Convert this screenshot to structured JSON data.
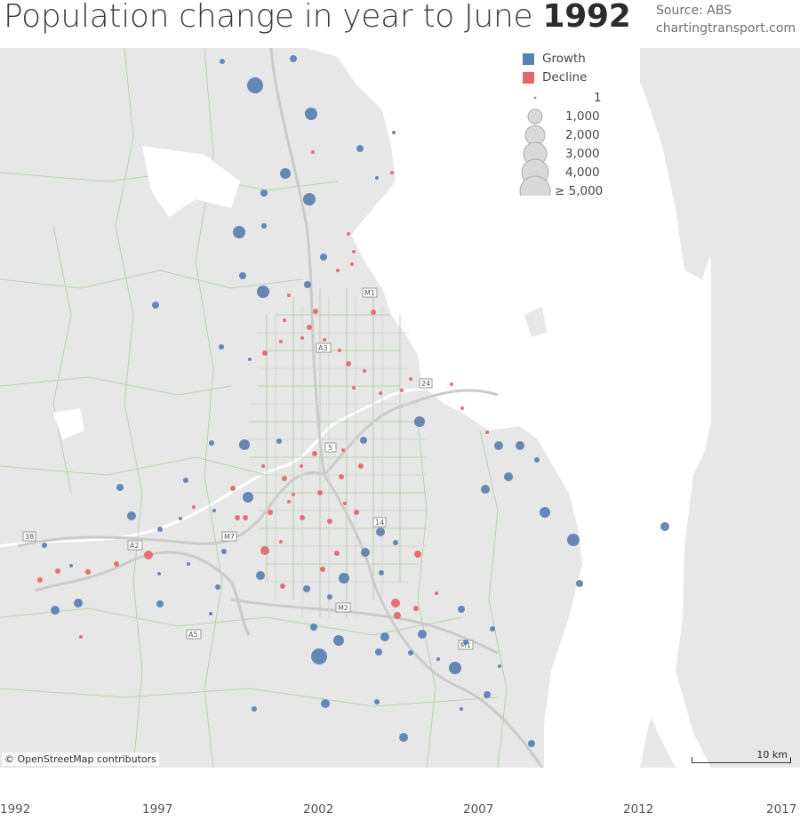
{
  "header": {
    "title_prefix": "Population change in year to June",
    "title_year": "1992",
    "source_line": "Source: ABS",
    "site_line": "chartingtransport.com"
  },
  "legend": {
    "categories": [
      {
        "label": "Growth",
        "color": "#5b7fb0"
      },
      {
        "label": "Decline",
        "color": "#e1676e"
      }
    ],
    "sizes": [
      "1",
      "1,000",
      "2,000",
      "3,000",
      "4,000",
      "≥ 5,000"
    ]
  },
  "map": {
    "attribution": "© OpenStreetMap contributors",
    "scale_label": "10 km",
    "road_labels": [
      "M1",
      "M1",
      "M2",
      "M7",
      "A2",
      "A3",
      "A5",
      "5",
      "14",
      "24",
      "38"
    ]
  },
  "timeline": {
    "years": [
      "1992",
      "1997",
      "2002",
      "2007",
      "2012",
      "2017"
    ]
  },
  "colors": {
    "growth": "#5b7fb0",
    "decline": "#e1676e",
    "land": "#e6e7e6",
    "water": "#ffffff",
    "roads": "#c8cac8",
    "boundaries": "#8cc47f"
  }
}
